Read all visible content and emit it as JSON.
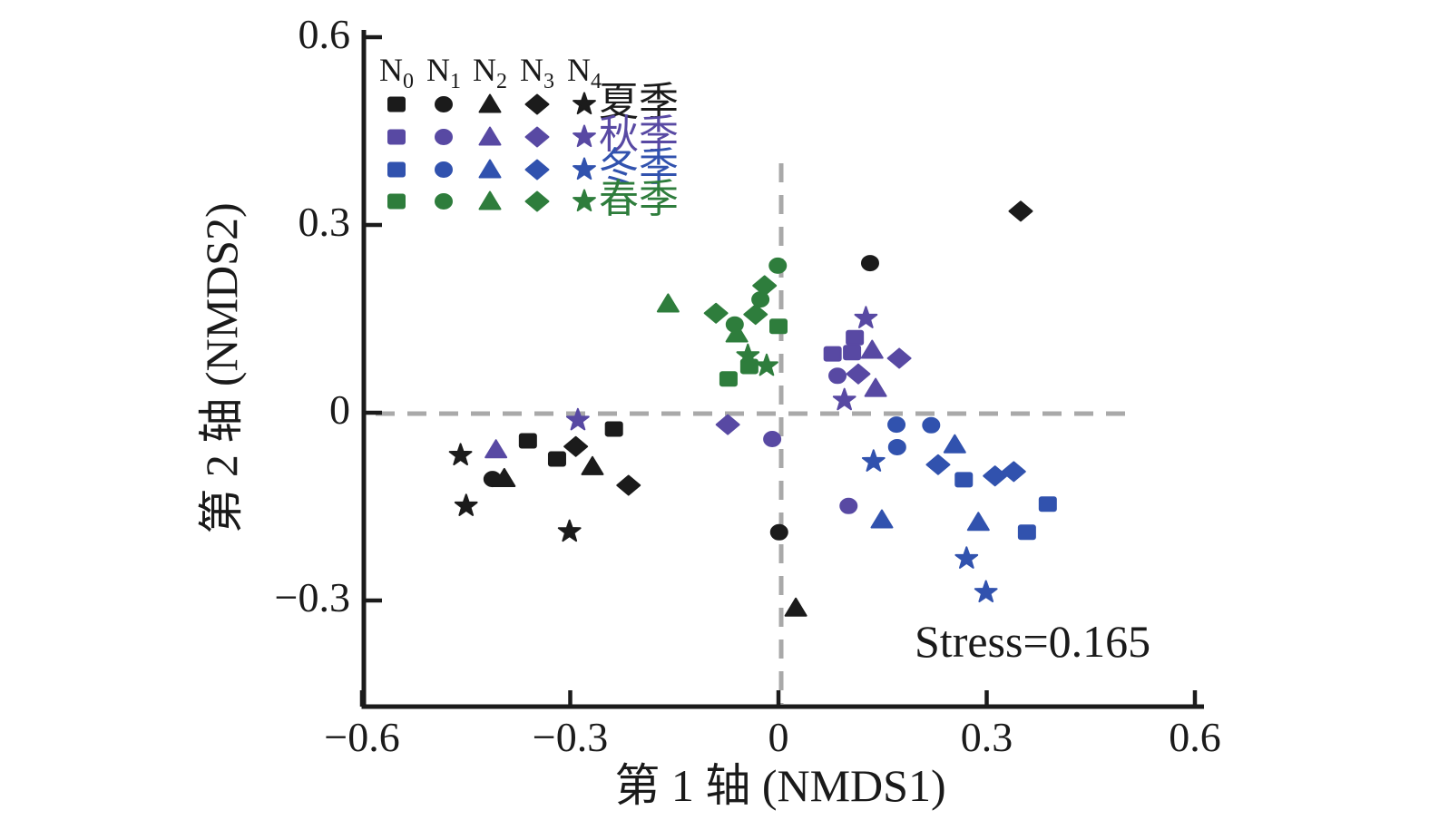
{
  "chart_data": {
    "type": "scatter",
    "title": "",
    "xlabel": "第 1 轴 (NMDS1)",
    "ylabel": "第 2 轴 (NMDS2)",
    "annotation": "Stress=0.165",
    "xlim": [
      -0.6,
      0.6
    ],
    "ylim": [
      -0.47,
      0.61
    ],
    "x_ticks": [
      -0.6,
      -0.3,
      0,
      0.3,
      0.6
    ],
    "x_tick_labels": [
      "−0.6",
      "−0.3",
      "0",
      "0.3",
      "0.6"
    ],
    "y_ticks": [
      0.6,
      0.3,
      0,
      -0.3
    ],
    "y_tick_labels": [
      "0.6",
      "0.3",
      "0",
      "−0.3"
    ],
    "grid": false,
    "reference_lines": {
      "vertical_x": 0,
      "horizontal_y": 0,
      "style": "dashed",
      "color": "#a9a9a9"
    },
    "legend": {
      "position": "upper-left",
      "treatments": [
        {
          "id": "N0",
          "base": "N",
          "sub": "0",
          "marker": "square"
        },
        {
          "id": "N1",
          "base": "N",
          "sub": "1",
          "marker": "circle"
        },
        {
          "id": "N2",
          "base": "N",
          "sub": "2",
          "marker": "triangle"
        },
        {
          "id": "N3",
          "base": "N",
          "sub": "3",
          "marker": "diamond"
        },
        {
          "id": "N4",
          "base": "N",
          "sub": "4",
          "marker": "star"
        }
      ],
      "seasons": [
        {
          "id": "summer",
          "label": "夏季",
          "color": "#1b1b1b"
        },
        {
          "id": "autumn",
          "label": "秋季",
          "color": "#5849a3"
        },
        {
          "id": "winter",
          "label": "冬季",
          "color": "#3152ae"
        },
        {
          "id": "spring",
          "label": "春季",
          "color": "#2e7d3c"
        }
      ]
    },
    "series": [
      {
        "season": "summer",
        "label": "夏季",
        "color": "#1b1b1b",
        "points": [
          {
            "treatment": "N0",
            "marker": "square",
            "x": -0.237,
            "y": -0.026
          },
          {
            "treatment": "N0",
            "marker": "square",
            "x": -0.361,
            "y": -0.045
          },
          {
            "treatment": "N0",
            "marker": "square",
            "x": -0.319,
            "y": -0.074
          },
          {
            "treatment": "N1",
            "marker": "circle",
            "x": 0.132,
            "y": 0.239
          },
          {
            "treatment": "N1",
            "marker": "circle",
            "x": -0.412,
            "y": -0.106
          },
          {
            "treatment": "N1",
            "marker": "circle",
            "x": 0.001,
            "y": -0.191
          },
          {
            "treatment": "N2",
            "marker": "triangle",
            "x": -0.268,
            "y": -0.086
          },
          {
            "treatment": "N2",
            "marker": "triangle",
            "x": -0.395,
            "y": -0.105
          },
          {
            "treatment": "N2",
            "marker": "triangle",
            "x": 0.025,
            "y": -0.312
          },
          {
            "treatment": "N3",
            "marker": "diamond",
            "x": 0.349,
            "y": 0.322
          },
          {
            "treatment": "N3",
            "marker": "diamond",
            "x": -0.292,
            "y": -0.054
          },
          {
            "treatment": "N3",
            "marker": "diamond",
            "x": -0.216,
            "y": -0.116
          },
          {
            "treatment": "N4",
            "marker": "star",
            "x": -0.458,
            "y": -0.068
          },
          {
            "treatment": "N4",
            "marker": "star",
            "x": -0.45,
            "y": -0.149
          },
          {
            "treatment": "N4",
            "marker": "star",
            "x": -0.301,
            "y": -0.19
          }
        ]
      },
      {
        "season": "autumn",
        "label": "秋季",
        "color": "#5849a3",
        "points": [
          {
            "treatment": "N0",
            "marker": "square",
            "x": 0.11,
            "y": 0.12
          },
          {
            "treatment": "N0",
            "marker": "square",
            "x": 0.078,
            "y": 0.094
          },
          {
            "treatment": "N0",
            "marker": "square",
            "x": 0.106,
            "y": 0.096
          },
          {
            "treatment": "N1",
            "marker": "circle",
            "x": 0.085,
            "y": 0.059
          },
          {
            "treatment": "N1",
            "marker": "circle",
            "x": -0.009,
            "y": -0.042
          },
          {
            "treatment": "N1",
            "marker": "circle",
            "x": 0.101,
            "y": -0.149
          },
          {
            "treatment": "N2",
            "marker": "triangle",
            "x": -0.407,
            "y": -0.059
          },
          {
            "treatment": "N2",
            "marker": "triangle",
            "x": 0.135,
            "y": 0.1
          },
          {
            "treatment": "N2",
            "marker": "triangle",
            "x": 0.14,
            "y": 0.039
          },
          {
            "treatment": "N3",
            "marker": "diamond",
            "x": 0.174,
            "y": 0.087
          },
          {
            "treatment": "N3",
            "marker": "diamond",
            "x": 0.115,
            "y": 0.062
          },
          {
            "treatment": "N3",
            "marker": "diamond",
            "x": -0.073,
            "y": -0.019
          },
          {
            "treatment": "N4",
            "marker": "star",
            "x": 0.126,
            "y": 0.151
          },
          {
            "treatment": "N4",
            "marker": "star",
            "x": 0.095,
            "y": 0.02
          },
          {
            "treatment": "N4",
            "marker": "star",
            "x": -0.289,
            "y": -0.012
          }
        ]
      },
      {
        "season": "winter",
        "label": "冬季",
        "color": "#3152ae",
        "points": [
          {
            "treatment": "N0",
            "marker": "square",
            "x": 0.267,
            "y": -0.107
          },
          {
            "treatment": "N0",
            "marker": "square",
            "x": 0.388,
            "y": -0.146
          },
          {
            "treatment": "N0",
            "marker": "square",
            "x": 0.358,
            "y": -0.191
          },
          {
            "treatment": "N1",
            "marker": "circle",
            "x": 0.17,
            "y": -0.019
          },
          {
            "treatment": "N1",
            "marker": "circle",
            "x": 0.22,
            "y": -0.02
          },
          {
            "treatment": "N1",
            "marker": "circle",
            "x": 0.171,
            "y": -0.055
          },
          {
            "treatment": "N2",
            "marker": "triangle",
            "x": 0.254,
            "y": -0.051
          },
          {
            "treatment": "N2",
            "marker": "triangle",
            "x": 0.149,
            "y": -0.171
          },
          {
            "treatment": "N2",
            "marker": "triangle",
            "x": 0.288,
            "y": -0.175
          },
          {
            "treatment": "N3",
            "marker": "diamond",
            "x": 0.23,
            "y": -0.083
          },
          {
            "treatment": "N3",
            "marker": "diamond",
            "x": 0.312,
            "y": -0.101
          },
          {
            "treatment": "N3",
            "marker": "diamond",
            "x": 0.339,
            "y": -0.094
          },
          {
            "treatment": "N4",
            "marker": "star",
            "x": 0.137,
            "y": -0.078
          },
          {
            "treatment": "N4",
            "marker": "star",
            "x": 0.271,
            "y": -0.233
          },
          {
            "treatment": "N4",
            "marker": "star",
            "x": 0.299,
            "y": -0.287
          }
        ]
      },
      {
        "season": "spring",
        "label": "春季",
        "color": "#2e7d3c",
        "points": [
          {
            "treatment": "N0",
            "marker": "square",
            "x": 0.0,
            "y": 0.138
          },
          {
            "treatment": "N0",
            "marker": "square",
            "x": -0.042,
            "y": 0.074
          },
          {
            "treatment": "N0",
            "marker": "square",
            "x": -0.072,
            "y": 0.054
          },
          {
            "treatment": "N1",
            "marker": "circle",
            "x": -0.001,
            "y": 0.235
          },
          {
            "treatment": "N1",
            "marker": "circle",
            "x": -0.026,
            "y": 0.181
          },
          {
            "treatment": "N1",
            "marker": "circle",
            "x": -0.063,
            "y": 0.141
          },
          {
            "treatment": "N2",
            "marker": "triangle",
            "x": -0.159,
            "y": 0.174
          },
          {
            "treatment": "N2",
            "marker": "triangle",
            "x": -0.06,
            "y": 0.126
          },
          {
            "treatment": "N3",
            "marker": "diamond",
            "x": -0.02,
            "y": 0.203
          },
          {
            "treatment": "N3",
            "marker": "diamond",
            "x": -0.033,
            "y": 0.157
          },
          {
            "treatment": "N3",
            "marker": "diamond",
            "x": -0.09,
            "y": 0.159
          },
          {
            "treatment": "N4",
            "marker": "star",
            "x": -0.044,
            "y": 0.091
          },
          {
            "treatment": "N4",
            "marker": "star",
            "x": -0.017,
            "y": 0.075
          }
        ]
      }
    ]
  }
}
